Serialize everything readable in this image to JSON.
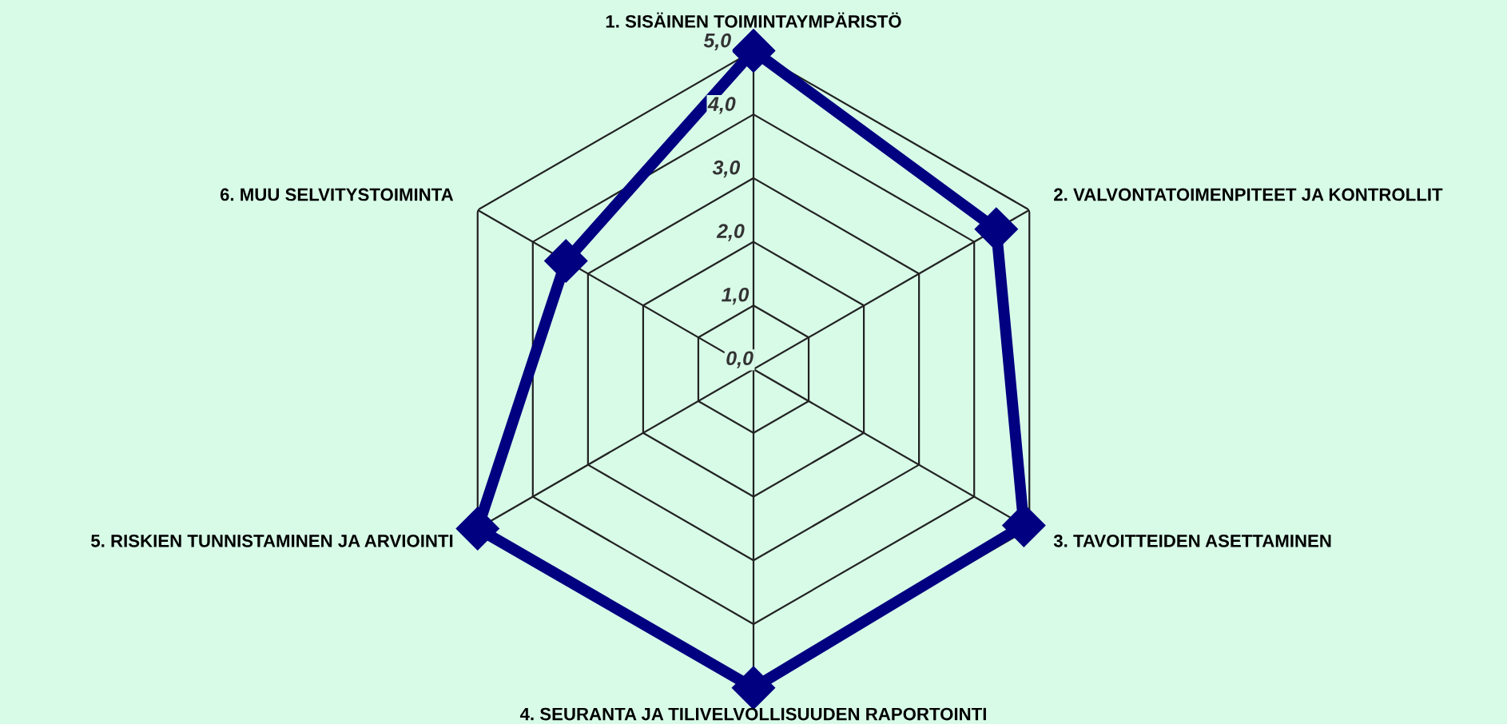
{
  "chart_data": {
    "type": "radar",
    "categories": [
      "1. SISÄINEN TOIMINTAYMPÄRISTÖ",
      "2. VALVONTATOIMENPITEET JA KONTROLLIT",
      "3. TAVOITTEIDEN ASETTAMINEN",
      "4. SEURANTA JA TILIVELVOLLISUUDEN RAPORTOINTI",
      "5. RISKIEN TUNNISTAMINEN JA ARVIOINTI",
      "6. MUU SELVITYSTOIMINTA"
    ],
    "series": [
      {
        "color": "#000080",
        "values": [
          5.0,
          4.4,
          4.9,
          5.0,
          5.0,
          3.4
        ]
      }
    ],
    "ylim": [
      0,
      5
    ],
    "yticks": [
      {
        "value": 0,
        "label": "0,0"
      },
      {
        "value": 1,
        "label": "1,0"
      },
      {
        "value": 2,
        "label": "2,0"
      },
      {
        "value": 3,
        "label": "3,0"
      },
      {
        "value": 4,
        "label": "4,0"
      },
      {
        "value": 5,
        "label": "5,0"
      }
    ],
    "grid": true,
    "marker": "diamond",
    "line_style": "solid",
    "legend": false
  }
}
